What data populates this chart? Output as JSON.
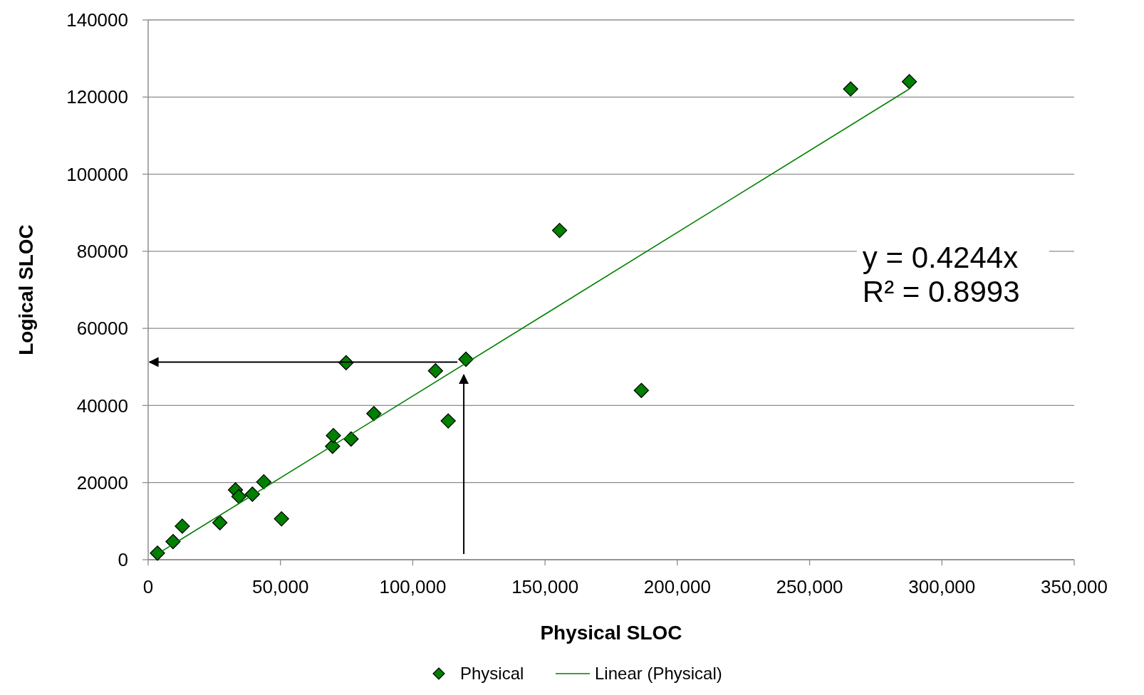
{
  "chart_data": {
    "type": "scatter",
    "xlabel": "Physical SLOC",
    "ylabel": "Logical SLOC",
    "xlim": [
      0,
      350000
    ],
    "ylim": [
      0,
      140000
    ],
    "xticks": [
      0,
      {
        "value": 50000,
        "label": "50,000"
      },
      {
        "value": 100000,
        "label": "100,000"
      },
      {
        "value": 150000,
        "label": "150,000"
      },
      {
        "value": 200000,
        "label": "200,000"
      },
      {
        "value": 250000,
        "label": "250,000"
      },
      {
        "value": 300000,
        "label": "300,000"
      },
      {
        "value": 350000,
        "label": "350,000"
      }
    ],
    "yticks": [
      0,
      20000,
      40000,
      60000,
      80000,
      100000,
      120000,
      140000
    ],
    "grid": "y",
    "legend": "bottom",
    "marker": "diamond",
    "annotations": [
      "y = 0.4244x\nR² = 0.8993"
    ],
    "series": [
      {
        "name": "Physical",
        "color": "#008000",
        "x": [
          3500,
          9400,
          12900,
          27100,
          33000,
          34300,
          39400,
          43700,
          50400,
          69700,
          70000,
          74800,
          76700,
          85300,
          108600,
          113400,
          120100,
          155500,
          186400,
          265500,
          287700
        ],
        "values": [
          1700,
          4700,
          8700,
          9600,
          18100,
          16400,
          17000,
          20200,
          10600,
          29400,
          32200,
          51100,
          31300,
          37900,
          49000,
          36000,
          52000,
          85400,
          43900,
          122100,
          124000
        ]
      },
      {
        "name": "Linear (Physical)",
        "type": "line",
        "marker": "none",
        "color": "#008000",
        "x": [
          3500,
          287700
        ],
        "values": [
          1500,
          122100
        ]
      }
    ]
  }
}
